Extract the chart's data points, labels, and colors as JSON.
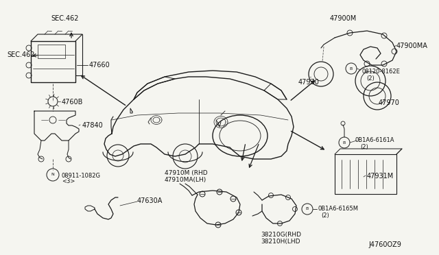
{
  "bg_color": "#f5f5f0",
  "diagram_id": "J4760OZ9",
  "lc": "#1a1a1a",
  "dc": "#555555",
  "tc": "#111111",
  "labels": {
    "sec462_top": "SEC.462",
    "sec462_left": "SEC.462",
    "p47660": "47660",
    "p4760b": "4760B",
    "p47840": "47840",
    "p08911": "08911-1082G",
    "p08911b": "<3>",
    "p47630a": "47630A",
    "p47910m": "47910M (RHD",
    "p47910ma": "47910MA(LH)",
    "p38210g": "38210G(RHD",
    "p38210h": "38210H(LHD",
    "p0b1a6_6165m": "0B1A6-6165M",
    "p0b1a6_6165m_qty": "(2)",
    "p47900m": "47900M",
    "p47900ma": "47900MA",
    "p47970_a": "47970",
    "p08120_8162e": "08120-8162E",
    "p08120_qty": "(2)",
    "p47970_b": "47970",
    "p0b1a6_6161a": "0B1A6-6161A",
    "p0b1a6_6161a_qty": "(2)",
    "p47931m": "47931M"
  }
}
